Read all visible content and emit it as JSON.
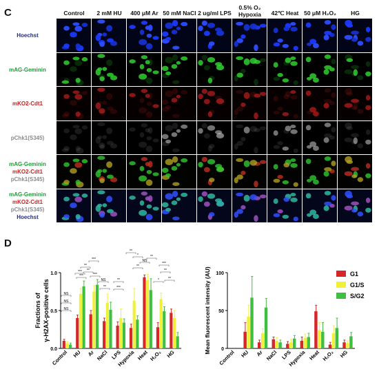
{
  "panel_c": {
    "label": "C",
    "columns": [
      "Control",
      "2 mM HU",
      "400 μM Ar",
      "50 mM NaCl",
      "2 ug/ml LPS",
      "0.5% O₂ Hypoxia",
      "42℃ Heat",
      "50 μM H₂O₂",
      "HG"
    ],
    "rows": [
      {
        "lines": [
          {
            "text": "Hoechst",
            "color": "#1f2d8a"
          }
        ],
        "channel": "blue"
      },
      {
        "lines": [
          {
            "text": "mAG-Geminin",
            "color": "#1f9b3a"
          }
        ],
        "channel": "green"
      },
      {
        "lines": [
          {
            "text": "mKO2-Cdt1",
            "color": "#d21e1e"
          }
        ],
        "channel": "red"
      },
      {
        "lines": [
          {
            "text": "pChk1(S345)",
            "color": "#8a8a8a"
          }
        ],
        "channel": "gray"
      },
      {
        "lines": [
          {
            "text": "mAG-Geminin",
            "color": "#1f9b3a"
          },
          {
            "text": "mKO2-Cdt1",
            "color": "#d21e1e"
          },
          {
            "text": "pChk1(S345)",
            "color": "#8a8a8a"
          }
        ],
        "channel": "merge3"
      },
      {
        "lines": [
          {
            "text": "mAG-Geminin",
            "color": "#1f9b3a"
          },
          {
            "text": "mKO2-Cdt1",
            "color": "#d21e1e"
          },
          {
            "text": "pChk1(S345)",
            "color": "#8a8a8a"
          },
          {
            "text": "Hoechst",
            "color": "#1f2d8a"
          }
        ],
        "channel": "merge4"
      }
    ]
  },
  "panel_d": {
    "label": "D"
  },
  "chart_data": [
    {
      "type": "bar",
      "ylabel_line1": "Fractions of",
      "ylabel_line2": "γ-H2AX-positive cells",
      "categories": [
        "Control",
        "HU",
        "Ar",
        "NaCl",
        "LPS",
        "Hypoxia",
        "Heat",
        "H₂O₂",
        "HG"
      ],
      "ylim": [
        0,
        1.0
      ],
      "yticks": [
        "0.0",
        "0.5",
        "1.0"
      ],
      "series": [
        {
          "name": "G1",
          "color": "#d62728",
          "values": [
            0.1,
            0.4,
            0.45,
            0.36,
            0.3,
            0.27,
            0.94,
            0.28,
            0.47
          ],
          "errors": [
            0.02,
            0.04,
            0.05,
            0.04,
            0.05,
            0.05,
            0.03,
            0.06,
            0.05
          ]
        },
        {
          "name": "G1/S",
          "color": "#f0f03a",
          "values": [
            0.07,
            0.72,
            0.75,
            0.6,
            0.4,
            0.63,
            0.9,
            0.65,
            0.4
          ],
          "errors": [
            0.02,
            0.07,
            0.08,
            0.12,
            0.12,
            0.16,
            0.08,
            0.08,
            0.1
          ]
        },
        {
          "name": "S/G2",
          "color": "#3fbf3f",
          "values": [
            0.05,
            0.82,
            0.84,
            0.51,
            0.34,
            0.38,
            0.77,
            0.49,
            0.16
          ],
          "errors": [
            0.02,
            0.07,
            0.07,
            0.1,
            0.05,
            0.05,
            0.15,
            0.06,
            0.05
          ]
        }
      ],
      "significance": [
        "***",
        "**",
        "*",
        "NS"
      ]
    },
    {
      "type": "bar",
      "ylabel": "Mean fluorescent intensity (AU)",
      "categories": [
        "Control",
        "HU",
        "Ar",
        "NaCl",
        "LPS",
        "Hypoxia",
        "Heat",
        "H₂O₂",
        "HG"
      ],
      "ylim": [
        0,
        100
      ],
      "yticks": [
        "0",
        "50",
        "100"
      ],
      "legend": "top-right",
      "series": [
        {
          "name": "G1",
          "color": "#d62728",
          "values": [
            0,
            22,
            8,
            12,
            6,
            10,
            49,
            5,
            8
          ],
          "errors": [
            0,
            12,
            3,
            3,
            3,
            5,
            8,
            3,
            3
          ]
        },
        {
          "name": "G1/S",
          "color": "#f0f03a",
          "values": [
            0,
            42,
            20,
            10,
            8,
            14,
            24,
            20,
            7
          ],
          "errors": [
            0,
            15,
            6,
            4,
            4,
            5,
            10,
            10,
            3
          ]
        },
        {
          "name": "S/G2",
          "color": "#3fbf3f",
          "values": [
            0,
            67,
            54,
            8,
            13,
            15,
            22,
            27,
            16
          ],
          "errors": [
            0,
            28,
            12,
            3,
            4,
            5,
            12,
            13,
            5
          ]
        }
      ]
    }
  ]
}
